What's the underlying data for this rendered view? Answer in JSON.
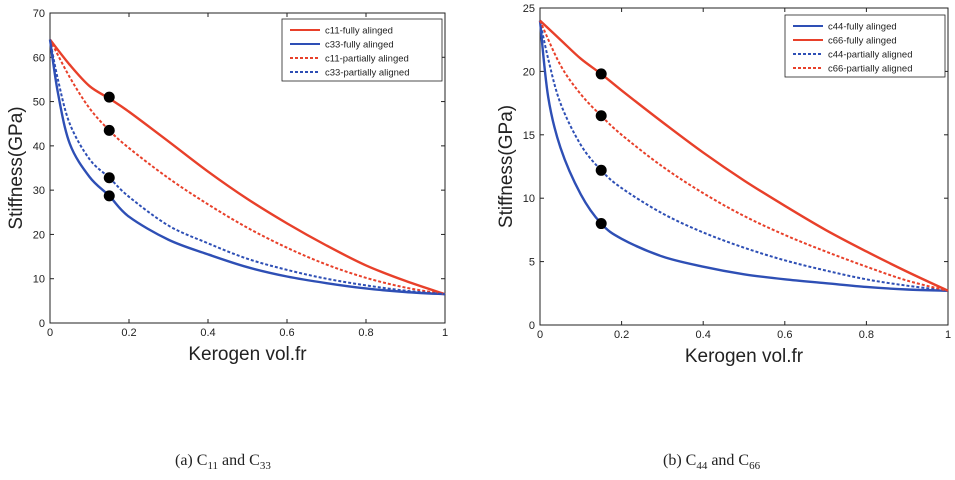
{
  "figure": {
    "caption_a": {
      "prefix": "(a) C",
      "s1": "11",
      "mid": " and C",
      "s2": "33"
    },
    "caption_b": {
      "prefix": "(b) C",
      "s1": "44",
      "mid": " and C",
      "s2": "66"
    }
  },
  "chart_data": [
    {
      "type": "line",
      "title": "",
      "xlabel": "Kerogen vol.fr",
      "ylabel": "Stiffness(GPa)",
      "xlim": [
        0,
        1
      ],
      "ylim": [
        0,
        70
      ],
      "xticks": [
        0,
        0.2,
        0.4,
        0.6,
        0.8,
        1
      ],
      "xtick_labels": [
        "0",
        "0.2",
        "0.4",
        "0.6",
        "0.8",
        "1"
      ],
      "yticks": [
        0,
        10,
        20,
        30,
        40,
        50,
        60,
        70
      ],
      "ytick_labels": [
        "0",
        "10",
        "20",
        "30",
        "40",
        "50",
        "60",
        "70"
      ],
      "grid": false,
      "legend_position": "top-right",
      "series": [
        {
          "name": "c11-fully alinged",
          "color": "#e8402a",
          "style": "solid",
          "x": [
            0,
            0.05,
            0.1,
            0.15,
            0.2,
            0.3,
            0.4,
            0.5,
            0.6,
            0.7,
            0.8,
            0.9,
            1.0
          ],
          "y": [
            64,
            58.3,
            53.5,
            50.7,
            47.7,
            41.0,
            34.2,
            28.0,
            22.5,
            17.5,
            13.0,
            9.5,
            6.5
          ]
        },
        {
          "name": "c33-fully alinged",
          "color": "#2e4fb5",
          "style": "solid",
          "x": [
            0,
            0.02,
            0.05,
            0.1,
            0.15,
            0.2,
            0.3,
            0.4,
            0.5,
            0.6,
            0.7,
            0.8,
            0.9,
            1.0
          ],
          "y": [
            64,
            52,
            40.5,
            33.0,
            28.7,
            24.0,
            18.8,
            15.5,
            12.6,
            10.5,
            9.0,
            7.8,
            7.0,
            6.5
          ]
        },
        {
          "name": "c11-partially alinged",
          "color": "#e8402a",
          "style": "dashed",
          "x": [
            0,
            0.05,
            0.1,
            0.15,
            0.2,
            0.3,
            0.4,
            0.5,
            0.6,
            0.7,
            0.8,
            0.9,
            1.0
          ],
          "y": [
            64,
            55.5,
            48.5,
            43.5,
            39.5,
            32.7,
            26.8,
            21.5,
            17.0,
            13.2,
            10.2,
            8.0,
            6.5
          ]
        },
        {
          "name": "c33-partially aligned",
          "color": "#2e4fb5",
          "style": "dashed",
          "x": [
            0,
            0.02,
            0.05,
            0.1,
            0.15,
            0.2,
            0.3,
            0.4,
            0.5,
            0.6,
            0.7,
            0.8,
            0.9,
            1.0
          ],
          "y": [
            64,
            55,
            45,
            37.0,
            32.8,
            28.5,
            22.0,
            18.0,
            14.5,
            12.0,
            10.0,
            8.5,
            7.3,
            6.5
          ]
        }
      ],
      "markers": [
        {
          "x": 0.15,
          "y": 51
        },
        {
          "x": 0.15,
          "y": 43.5
        },
        {
          "x": 0.15,
          "y": 32.8
        },
        {
          "x": 0.15,
          "y": 28.7
        }
      ]
    },
    {
      "type": "line",
      "title": "",
      "xlabel": "Kerogen vol.fr",
      "ylabel": "Stiffness(GPa)",
      "xlim": [
        0,
        1
      ],
      "ylim": [
        0,
        25
      ],
      "xticks": [
        0,
        0.2,
        0.4,
        0.6,
        0.8,
        1
      ],
      "xtick_labels": [
        "0",
        "0.2",
        "0.4",
        "0.6",
        "0.8",
        "1"
      ],
      "yticks": [
        0,
        5,
        10,
        15,
        20,
        25
      ],
      "ytick_labels": [
        "0",
        "5",
        "10",
        "15",
        "20",
        "25"
      ],
      "grid": false,
      "legend_position": "top-right",
      "series": [
        {
          "name": "c44-fully alinged",
          "color": "#2e4fb5",
          "style": "solid",
          "x": [
            0,
            0.02,
            0.05,
            0.1,
            0.15,
            0.2,
            0.3,
            0.4,
            0.5,
            0.6,
            0.7,
            0.8,
            0.9,
            1.0
          ],
          "y": [
            24,
            18,
            14,
            10.3,
            8.0,
            6.8,
            5.4,
            4.6,
            4.0,
            3.6,
            3.3,
            3.0,
            2.8,
            2.7
          ]
        },
        {
          "name": "c66-fully alinged",
          "color": "#e8402a",
          "style": "solid",
          "x": [
            0,
            0.05,
            0.1,
            0.15,
            0.2,
            0.3,
            0.4,
            0.5,
            0.6,
            0.7,
            0.8,
            0.9,
            1.0
          ],
          "y": [
            24,
            22.5,
            21.0,
            19.8,
            18.5,
            16.0,
            13.6,
            11.4,
            9.4,
            7.5,
            5.8,
            4.2,
            2.7
          ]
        },
        {
          "name": "c44-partially aligned",
          "color": "#2e4fb5",
          "style": "dashed",
          "x": [
            0,
            0.02,
            0.05,
            0.1,
            0.15,
            0.2,
            0.3,
            0.4,
            0.5,
            0.6,
            0.7,
            0.8,
            0.9,
            1.0
          ],
          "y": [
            24,
            21,
            17.5,
            14.2,
            12.2,
            10.8,
            8.8,
            7.3,
            6.1,
            5.1,
            4.3,
            3.6,
            3.1,
            2.7
          ]
        },
        {
          "name": "c66-partially aligned",
          "color": "#e8402a",
          "style": "dashed",
          "x": [
            0,
            0.05,
            0.1,
            0.15,
            0.2,
            0.3,
            0.4,
            0.5,
            0.6,
            0.7,
            0.8,
            0.9,
            1.0
          ],
          "y": [
            24,
            20.5,
            18.2,
            16.5,
            15.0,
            12.5,
            10.4,
            8.6,
            7.1,
            5.8,
            4.6,
            3.5,
            2.7
          ]
        }
      ],
      "markers": [
        {
          "x": 0.15,
          "y": 19.8
        },
        {
          "x": 0.15,
          "y": 16.5
        },
        {
          "x": 0.15,
          "y": 12.2
        },
        {
          "x": 0.15,
          "y": 8.0
        }
      ]
    }
  ]
}
